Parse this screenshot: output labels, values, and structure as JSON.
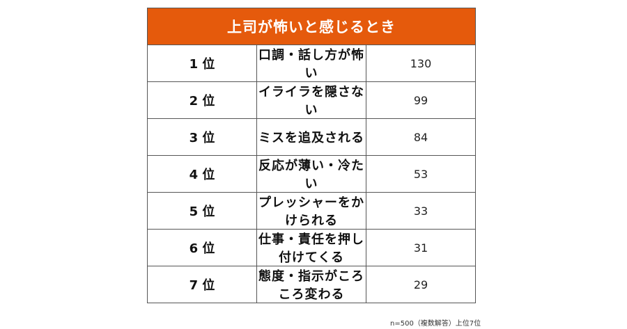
{
  "title": "上司が怖いと感じるとき",
  "rows": [
    {
      "rank": "1 位",
      "item": "口調・話し方が怖い",
      "count": "130"
    },
    {
      "rank": "2 位",
      "item": "イライラを隠さない",
      "count": "99"
    },
    {
      "rank": "3 位",
      "item": "ミスを追及される",
      "count": "84"
    },
    {
      "rank": "4 位",
      "item": "反応が薄い・冷たい",
      "count": "53"
    },
    {
      "rank": "5 位",
      "item": "プレッシャーをかけられる",
      "count": "33"
    },
    {
      "rank": "6 位",
      "item": "仕事・責任を押し付けてくる",
      "count": "31"
    },
    {
      "rank": "7 位",
      "item": "態度・指示がころころ変わる",
      "count": "29"
    }
  ],
  "note": "n=500（複数解答）上位7位",
  "colors": {
    "header_bg": "#e55a0c",
    "header_text": "#ffffff",
    "border": "#555555"
  }
}
